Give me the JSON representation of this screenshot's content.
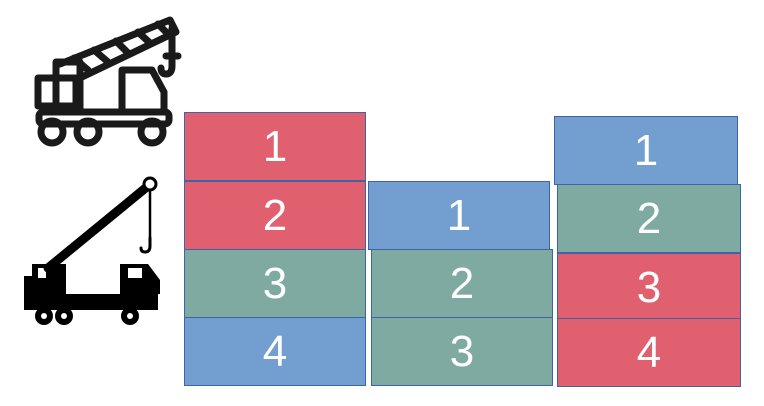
{
  "icons": {
    "top_crane": "outline-crane-truck-icon",
    "bottom_crane": "solid-crane-truck-icon"
  },
  "colors": {
    "red": "#e06070",
    "blue": "#729fd0",
    "green": "#7faaa2",
    "border": "#3f63a8",
    "text": "#ffffff"
  },
  "stacks": [
    {
      "blocks": [
        {
          "label": "1",
          "color": "red"
        },
        {
          "label": "2",
          "color": "red"
        },
        {
          "label": "3",
          "color": "green"
        },
        {
          "label": "4",
          "color": "blue"
        }
      ]
    },
    {
      "blocks": [
        {
          "label": "1",
          "color": "blue"
        },
        {
          "label": "2",
          "color": "green"
        },
        {
          "label": "3",
          "color": "green"
        }
      ]
    },
    {
      "blocks": [
        {
          "label": "1",
          "color": "blue"
        },
        {
          "label": "2",
          "color": "green"
        },
        {
          "label": "3",
          "color": "red"
        },
        {
          "label": "4",
          "color": "red"
        }
      ]
    }
  ]
}
